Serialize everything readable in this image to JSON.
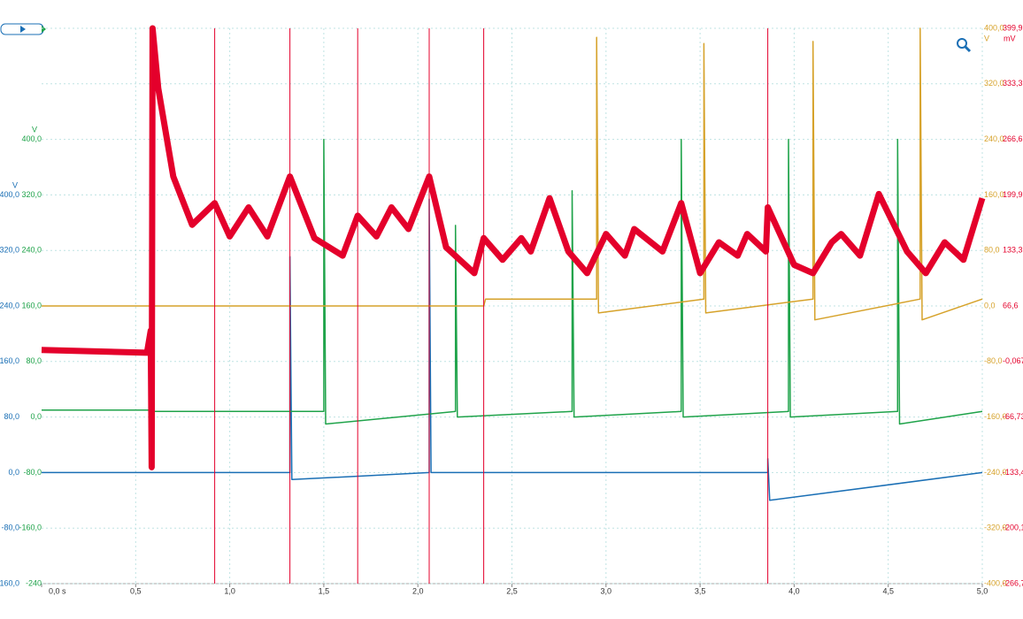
{
  "chart_data": {
    "type": "line",
    "xlim": [
      0,
      5
    ],
    "xticks": [
      {
        "value": 0,
        "label": "0,0 s"
      },
      {
        "value": 0.5,
        "label": "0,5"
      },
      {
        "value": 1,
        "label": "1,0"
      },
      {
        "value": 1.5,
        "label": "1,5"
      },
      {
        "value": 2,
        "label": "2,0"
      },
      {
        "value": 2.5,
        "label": "2,5"
      },
      {
        "value": 3,
        "label": "3,0"
      },
      {
        "value": 3.5,
        "label": "3,5"
      },
      {
        "value": 4,
        "label": "4,0"
      },
      {
        "value": 4.5,
        "label": "4,5"
      },
      {
        "value": 5,
        "label": "5,0"
      }
    ],
    "y_label": "V",
    "ylim": [
      -160,
      640
    ],
    "yticks": [
      {
        "value": 400,
        "label": "400,0"
      },
      {
        "value": 320,
        "label": "320,0"
      },
      {
        "value": 240,
        "label": "240,0"
      },
      {
        "value": 160,
        "label": "160,0"
      },
      {
        "value": 80,
        "label": "80,0"
      },
      {
        "value": 0,
        "label": "0,0"
      },
      {
        "value": -80,
        "label": "-80,0"
      },
      {
        "value": -160,
        "label": "-160,0"
      }
    ],
    "y3_label": "V",
    "y3lim": [
      -240,
      560
    ],
    "y3ticks": [
      {
        "value": 400,
        "label": "400,0"
      },
      {
        "value": 320,
        "label": "320,0"
      },
      {
        "value": 240,
        "label": "240,0"
      },
      {
        "value": 160,
        "label": "160,0"
      },
      {
        "value": 80,
        "label": "80,0"
      },
      {
        "value": 0,
        "label": "0,0"
      },
      {
        "value": -80,
        "label": "-80,0"
      },
      {
        "value": -160,
        "label": "-160,0"
      },
      -240
    ],
    "y2_label": "V",
    "y2lim": [
      -400,
      400
    ],
    "y2ticks": [
      {
        "value": 400,
        "label": "400,0"
      },
      {
        "value": 320,
        "label": "320,0"
      },
      {
        "value": 240,
        "label": "240,0"
      },
      {
        "value": 160,
        "label": "160,0"
      },
      {
        "value": 80,
        "label": "80,0"
      },
      {
        "value": 0,
        "label": "0,0"
      },
      {
        "value": -80,
        "label": "-80,0"
      },
      {
        "value": -160,
        "label": "-160,0"
      },
      {
        "value": -240,
        "label": "-240,0"
      },
      {
        "value": -320,
        "label": "-320,0"
      },
      {
        "value": -400,
        "label": "-400,0"
      }
    ],
    "y4_label": "mV",
    "y4lim": [
      -266.7,
      399.9
    ],
    "y4ticks": [
      {
        "value": 399.9,
        "label": "399,9"
      },
      {
        "value": 333.3,
        "label": "333,3"
      },
      {
        "value": 266.6,
        "label": "266,6"
      },
      {
        "value": 199.9,
        "label": "199,9"
      },
      {
        "value": 133.3,
        "label": "133,3"
      },
      {
        "value": 66.6,
        "label": "66,6"
      },
      {
        "value": -0.067,
        "label": "-0,067"
      },
      {
        "value": -66.73,
        "label": "-66,73"
      },
      {
        "value": -133.4,
        "label": "-133,4"
      },
      {
        "value": -200.1,
        "label": "-200,1"
      },
      {
        "value": -266.7,
        "label": "-266,7"
      }
    ],
    "grid": true,
    "series": [
      {
        "color": "#1a6fb5",
        "axis": "y",
        "width": 1.5,
        "x": [
          0,
          1.32,
          1.32,
          1.33,
          2.06,
          2.06,
          2.07,
          3.86,
          3.86,
          3.87,
          5
        ],
        "values": [
          0,
          0,
          311,
          -10,
          0,
          394,
          0,
          0,
          20,
          -40,
          0
        ]
      },
      {
        "color": "#1fa34a",
        "axis": "y3",
        "width": 1.5,
        "x": [
          0,
          0.59,
          0.6,
          1.5,
          1.5,
          1.51,
          2.2,
          2.2,
          2.21,
          2.82,
          2.82,
          2.83,
          3.4,
          3.4,
          3.41,
          3.97,
          3.97,
          3.98,
          4.55,
          4.55,
          4.56,
          5
        ],
        "values": [
          10,
          10,
          8,
          8,
          400,
          -10,
          8,
          276,
          0,
          8,
          326,
          0,
          8,
          400,
          0,
          8,
          400,
          0,
          8,
          400,
          -10,
          8
        ]
      },
      {
        "color": "#d6a22a",
        "axis": "y2",
        "width": 1.5,
        "x": [
          0,
          2.35,
          2.36,
          2.95,
          2.95,
          2.96,
          3.52,
          3.52,
          3.53,
          4.1,
          4.1,
          4.11,
          4.67,
          4.67,
          4.68,
          5
        ],
        "values": [
          0,
          0,
          10,
          10,
          387,
          -10,
          10,
          378,
          -10,
          10,
          381,
          -20,
          10,
          400,
          -20,
          10
        ]
      },
      {
        "color": "#e4002b",
        "axis": "y4",
        "width": 7,
        "x": [
          0,
          0.56,
          0.58,
          0.585,
          0.59,
          0.62,
          0.7,
          0.8,
          0.92,
          1,
          1.1,
          1.2,
          1.32,
          1.45,
          1.6,
          1.68,
          1.78,
          1.86,
          1.95,
          2.06,
          2.15,
          2.3,
          2.35,
          2.45,
          2.55,
          2.6,
          2.7,
          2.8,
          2.9,
          3,
          3.1,
          3.15,
          3.3,
          3.4,
          3.5,
          3.6,
          3.7,
          3.75,
          3.85,
          3.86,
          4,
          4.1,
          4.2,
          4.25,
          4.35,
          4.45,
          4.6,
          4.7,
          4.8,
          4.9,
          5
        ],
        "values": [
          13.7,
          10.5,
          37,
          -127,
          399.9,
          328,
          222,
          164,
          190,
          150,
          185,
          150,
          222,
          148,
          127,
          175,
          150,
          185,
          159,
          222,
          137,
          106,
          148,
          122,
          148,
          132,
          196,
          132,
          106,
          153,
          127,
          159,
          132,
          190,
          106,
          143,
          127,
          153,
          132,
          185,
          116,
          106,
          143,
          153,
          127,
          201,
          132,
          106,
          143,
          122,
          196
        ]
      },
      {
        "color": "#e4002b",
        "axis": "y4",
        "width": 1,
        "x": [
          0.92,
          0.92,
          null,
          1.32,
          1.32,
          null,
          1.68,
          1.68,
          null,
          2.06,
          2.06,
          null,
          2.35,
          2.35,
          null,
          3.86,
          3.86
        ],
        "values": [
          399.9,
          -266.7,
          null,
          399.9,
          -266.7,
          null,
          399.9,
          -266.7,
          null,
          399.9,
          -266.7,
          null,
          399.9,
          -266.7,
          null,
          399.9,
          -266.7
        ]
      }
    ]
  }
}
